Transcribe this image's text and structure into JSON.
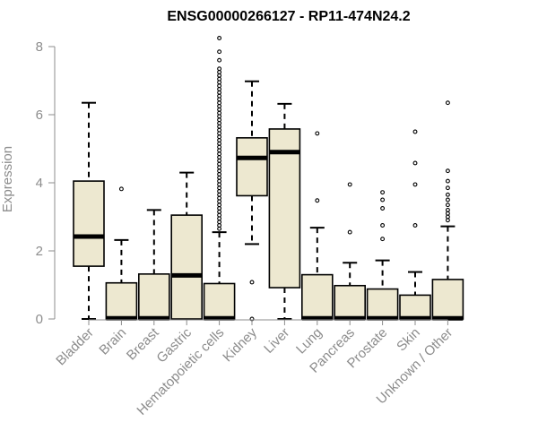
{
  "chart_data": {
    "type": "box",
    "title": "ENSG00000266127 - RP11-474N24.2",
    "xlabel": "",
    "ylabel": "Expression",
    "ylim": [
      0,
      8
    ],
    "yticks": [
      0,
      2,
      4,
      6,
      8
    ],
    "grid": false,
    "box_fill": "#ede8d0",
    "box_stroke": "#000000",
    "axis_color": "#8c8c8c",
    "categories": [
      "Bladder",
      "Brain",
      "Breast",
      "Gastric",
      "Hematopoietic cells",
      "Kidney",
      "Liver",
      "Lung",
      "Pancreas",
      "Prostate",
      "Skin",
      "Unknown / Other"
    ],
    "boxes": [
      {
        "category": "Bladder",
        "whisker_low": 0,
        "q1": 1.55,
        "median": 2.42,
        "q3": 4.05,
        "whisker_high": 6.35,
        "outliers": []
      },
      {
        "category": "Brain",
        "whisker_low": 0,
        "q1": 0,
        "median": 0.02,
        "q3": 1.06,
        "whisker_high": 2.32,
        "outliers": [
          3.82
        ]
      },
      {
        "category": "Breast",
        "whisker_low": 0,
        "q1": 0,
        "median": 0.02,
        "q3": 1.32,
        "whisker_high": 3.2,
        "outliers": []
      },
      {
        "category": "Gastric",
        "whisker_low": 0,
        "q1": 0,
        "median": 1.28,
        "q3": 3.05,
        "whisker_high": 4.3,
        "outliers": []
      },
      {
        "category": "Hematopoietic cells",
        "whisker_low": 0,
        "q1": 0,
        "median": 0.02,
        "q3": 1.04,
        "whisker_high": 2.55,
        "outliers": [
          2.65,
          2.75,
          2.85,
          2.95,
          3.05,
          3.15,
          3.25,
          3.35,
          3.45,
          3.55,
          3.65,
          3.75,
          3.85,
          3.95,
          4.05,
          4.15,
          4.25,
          4.35,
          4.45,
          4.55,
          4.65,
          4.75,
          4.85,
          4.95,
          5.05,
          5.15,
          5.25,
          5.35,
          5.45,
          5.55,
          5.65,
          5.75,
          5.85,
          5.95,
          6.05,
          6.15,
          6.25,
          6.35,
          6.45,
          6.55,
          6.65,
          6.75,
          6.85,
          6.95,
          7.05,
          7.15,
          7.25,
          7.35,
          7.6,
          7.85,
          8.25
        ]
      },
      {
        "category": "Kidney",
        "whisker_low": 2.2,
        "q1": 3.62,
        "median": 4.73,
        "q3": 5.32,
        "whisker_high": 6.98,
        "outliers": [
          0,
          1.08
        ]
      },
      {
        "category": "Liver",
        "whisker_low": 0,
        "q1": 0.92,
        "median": 4.9,
        "q3": 5.58,
        "whisker_high": 6.32,
        "outliers": []
      },
      {
        "category": "Lung",
        "whisker_low": 0,
        "q1": 0,
        "median": 0.02,
        "q3": 1.3,
        "whisker_high": 2.68,
        "outliers": [
          3.48,
          5.45
        ]
      },
      {
        "category": "Pancreas",
        "whisker_low": 0,
        "q1": 0,
        "median": 0.02,
        "q3": 0.98,
        "whisker_high": 1.65,
        "outliers": [
          2.55,
          3.95
        ]
      },
      {
        "category": "Prostate",
        "whisker_low": 0,
        "q1": 0,
        "median": 0.02,
        "q3": 0.88,
        "whisker_high": 1.72,
        "outliers": [
          2.35,
          2.75,
          3.25,
          3.5,
          3.72
        ]
      },
      {
        "category": "Skin",
        "whisker_low": 0,
        "q1": 0,
        "median": 0.02,
        "q3": 0.7,
        "whisker_high": 1.38,
        "outliers": [
          2.75,
          3.95,
          4.58,
          5.5
        ]
      },
      {
        "category": "Unknown / Other",
        "whisker_low": 0,
        "q1": 0,
        "median": 0.02,
        "q3": 1.16,
        "whisker_high": 2.72,
        "outliers": [
          2.9,
          3.0,
          3.1,
          3.2,
          3.35,
          3.5,
          3.65,
          3.85,
          4.05,
          4.35,
          6.35
        ]
      }
    ]
  }
}
